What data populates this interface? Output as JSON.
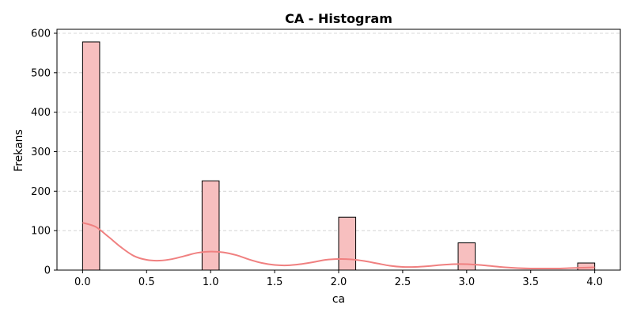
{
  "chart_data": {
    "type": "bar",
    "title": "CA - Histogram",
    "xlabel": "ca",
    "ylabel": "Frekans",
    "xlim": [
      -0.2,
      4.2
    ],
    "ylim": [
      0,
      610
    ],
    "xticks": [
      "0.0",
      "0.5",
      "1.0",
      "1.5",
      "2.0",
      "2.5",
      "3.0",
      "3.5",
      "4.0"
    ],
    "yticks": [
      "0",
      "100",
      "200",
      "300",
      "400",
      "500",
      "600"
    ],
    "grid": "y-dashed",
    "bar_width": 0.1333,
    "bars": [
      {
        "x_start": 0.0,
        "value": 578
      },
      {
        "x_start": 0.9333,
        "value": 226
      },
      {
        "x_start": 2.0,
        "value": 134
      },
      {
        "x_start": 2.9333,
        "value": 69
      },
      {
        "x_start": 3.8667,
        "value": 18
      }
    ],
    "kde": {
      "x": [
        0.0,
        0.1,
        0.2,
        0.3,
        0.4,
        0.5,
        0.6,
        0.7,
        0.8,
        0.9,
        1.0,
        1.1,
        1.2,
        1.3,
        1.4,
        1.5,
        1.6,
        1.7,
        1.8,
        1.9,
        2.0,
        2.1,
        2.2,
        2.3,
        2.4,
        2.5,
        2.6,
        2.7,
        2.8,
        2.9,
        3.0,
        3.1,
        3.2,
        3.3,
        3.4,
        3.5,
        3.6,
        3.7,
        3.8,
        3.9,
        4.0
      ],
      "y": [
        120,
        110,
        85,
        58,
        36,
        26,
        24,
        28,
        36,
        44,
        47,
        45,
        38,
        27,
        18,
        13,
        12,
        15,
        20,
        26,
        28,
        27,
        23,
        17,
        11,
        8,
        8,
        10,
        13,
        15,
        15,
        13,
        10,
        7,
        5,
        4,
        4,
        4,
        5,
        6,
        7
      ]
    },
    "colors": {
      "bar_fill": "#f7bfbf",
      "bar_edge": "#000000",
      "kde_line": "#f08080",
      "grid": "#cccccc"
    }
  }
}
